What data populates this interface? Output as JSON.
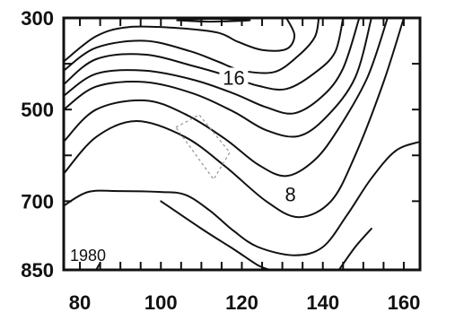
{
  "chart_data": {
    "type": "contour",
    "title": "",
    "xlabel": "",
    "ylabel": "",
    "xlim": [
      76,
      164
    ],
    "ylim": [
      850,
      300
    ],
    "x_ticks": [
      "80",
      "100",
      "120",
      "140",
      "160"
    ],
    "y_ticks": [
      "300",
      "500",
      "700",
      "850"
    ],
    "contour_labels": [
      {
        "text": "16",
        "x": 118,
        "y": 430
      },
      {
        "text": "8",
        "x": 132,
        "y": 685
      }
    ],
    "annotation": "1980",
    "contours": [
      {
        "points": [
          [
            104,
            305
          ],
          [
            112,
            302
          ],
          [
            122,
            305
          ],
          [
            112,
            308
          ],
          [
            104,
            305
          ]
        ]
      },
      {
        "points": [
          [
            76,
            395
          ],
          [
            84,
            340
          ],
          [
            92,
            320
          ],
          [
            104,
            322
          ],
          [
            114,
            332
          ],
          [
            119,
            352
          ],
          [
            125,
            370
          ],
          [
            131,
            368
          ],
          [
            133,
            338
          ],
          [
            131,
            300
          ]
        ]
      },
      {
        "points": [
          [
            76,
            415
          ],
          [
            84,
            365
          ],
          [
            96,
            350
          ],
          [
            107,
            372
          ],
          [
            114,
            395
          ],
          [
            120,
            415
          ],
          [
            128,
            418
          ],
          [
            134,
            382
          ],
          [
            138,
            342
          ],
          [
            139,
            300
          ]
        ]
      },
      {
        "points": [
          [
            76,
            445
          ],
          [
            84,
            390
          ],
          [
            96,
            380
          ],
          [
            108,
            405
          ],
          [
            116,
            425
          ],
          [
            124,
            448
          ],
          [
            131,
            455
          ],
          [
            138,
            420
          ],
          [
            143,
            375
          ],
          [
            145,
            300
          ]
        ]
      },
      {
        "points": [
          [
            76,
            470
          ],
          [
            84,
            422
          ],
          [
            96,
            415
          ],
          [
            108,
            435
          ],
          [
            118,
            465
          ],
          [
            126,
            495
          ],
          [
            133,
            508
          ],
          [
            140,
            470
          ],
          [
            145,
            410
          ],
          [
            149,
            300
          ]
        ]
      },
      {
        "points": [
          [
            76,
            500
          ],
          [
            84,
            450
          ],
          [
            96,
            440
          ],
          [
            108,
            465
          ],
          [
            118,
            505
          ],
          [
            126,
            545
          ],
          [
            134,
            558
          ],
          [
            141,
            515
          ],
          [
            148,
            430
          ],
          [
            152,
            300
          ]
        ]
      },
      {
        "points": [
          [
            76,
            570
          ],
          [
            84,
            500
          ],
          [
            96,
            480
          ],
          [
            106,
            510
          ],
          [
            116,
            565
          ],
          [
            124,
            620
          ],
          [
            131,
            645
          ],
          [
            138,
            610
          ],
          [
            144,
            540
          ],
          [
            151,
            430
          ],
          [
            156,
            300
          ]
        ]
      },
      {
        "points": [
          [
            76,
            640
          ],
          [
            84,
            560
          ],
          [
            94,
            525
          ],
          [
            106,
            560
          ],
          [
            116,
            625
          ],
          [
            126,
            700
          ],
          [
            134,
            735
          ],
          [
            142,
            700
          ],
          [
            148,
            600
          ],
          [
            155,
            440
          ],
          [
            160,
            300
          ]
        ]
      },
      {
        "points": [
          [
            76,
            710
          ],
          [
            82,
            680
          ],
          [
            90,
            678
          ],
          [
            100,
            680
          ],
          [
            106,
            686
          ],
          [
            112,
            720
          ],
          [
            118,
            765
          ],
          [
            124,
            800
          ],
          [
            133,
            818
          ],
          [
            140,
            800
          ],
          [
            146,
            730
          ],
          [
            152,
            650
          ],
          [
            158,
            590
          ],
          [
            164,
            570
          ]
        ]
      },
      {
        "points": [
          [
            100,
            700
          ],
          [
            110,
            760
          ],
          [
            118,
            805
          ],
          [
            124,
            840
          ],
          [
            127,
            850
          ]
        ]
      },
      {
        "points": [
          [
            84,
            850
          ],
          [
            85,
            835
          ]
        ]
      },
      {
        "points": [
          [
            144,
            850
          ],
          [
            148,
            800
          ],
          [
            152,
            760
          ]
        ]
      }
    ]
  }
}
